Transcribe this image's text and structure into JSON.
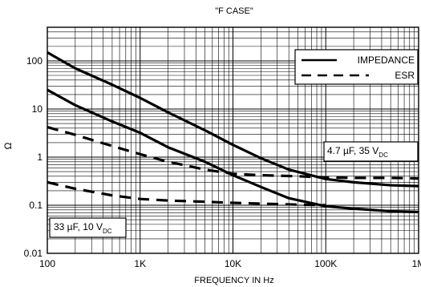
{
  "chart_data": {
    "type": "line",
    "title": "\"F CASE\"",
    "xlabel": "FREQUENCY IN Hz",
    "ylabel": "Ω",
    "x_scale": "log",
    "y_scale": "log",
    "xlim": [
      100,
      1000000
    ],
    "ylim": [
      0.01,
      500
    ],
    "x_ticks": [
      {
        "value": 100,
        "label": "100"
      },
      {
        "value": 1000,
        "label": "1K"
      },
      {
        "value": 10000,
        "label": "10K"
      },
      {
        "value": 100000,
        "label": "100K"
      },
      {
        "value": 1000000,
        "label": "1M"
      }
    ],
    "y_ticks": [
      {
        "value": 100,
        "label": "100"
      },
      {
        "value": 10,
        "label": "10"
      },
      {
        "value": 1,
        "label": "1"
      },
      {
        "value": 0.1,
        "label": "0.1"
      },
      {
        "value": 0.01,
        "label": "0.01"
      }
    ],
    "grid": true,
    "legend": {
      "position": "top-right",
      "entries": [
        {
          "name": "IMPEDANCE",
          "style": "solid"
        },
        {
          "name": "ESR",
          "style": "dashed"
        }
      ]
    },
    "annotations": [
      {
        "id": "cap-4-7",
        "main": "4.7 µF, 35 V",
        "sub": "DC"
      },
      {
        "id": "cap-33",
        "main": "33 µF, 10 V",
        "sub": "DC"
      }
    ],
    "series": [
      {
        "style": "solid",
        "group": "cap-33",
        "x": [
          100,
          200,
          500,
          1000,
          2000,
          5000,
          10000,
          20000,
          40000,
          100000,
          200000,
          500000,
          1000000
        ],
        "y": [
          150,
          70,
          32,
          17,
          8.5,
          3.6,
          1.8,
          0.95,
          0.55,
          0.35,
          0.3,
          0.26,
          0.25
        ]
      },
      {
        "style": "solid",
        "group": "cap-4-7",
        "x": [
          100,
          200,
          500,
          1000,
          2000,
          5000,
          10000,
          20000,
          40000,
          100000,
          200000,
          500000,
          1000000
        ],
        "y": [
          25,
          12,
          5.5,
          3.2,
          1.6,
          0.8,
          0.42,
          0.24,
          0.14,
          0.095,
          0.085,
          0.075,
          0.072
        ]
      },
      {
        "style": "dashed",
        "group": "cap-4-7",
        "x": [
          100,
          200,
          500,
          1000,
          2000,
          5000,
          10000,
          20000,
          50000,
          100000,
          200000,
          500000,
          1000000
        ],
        "y": [
          4.2,
          2.9,
          1.7,
          1.15,
          0.8,
          0.55,
          0.45,
          0.42,
          0.4,
          0.38,
          0.37,
          0.37,
          0.36
        ]
      },
      {
        "style": "dashed",
        "group": "cap-33",
        "x": [
          100,
          200,
          500,
          1000,
          2000,
          5000,
          10000,
          20000,
          50000,
          100000
        ],
        "y": [
          0.3,
          0.22,
          0.16,
          0.135,
          0.125,
          0.118,
          0.112,
          0.108,
          0.103,
          0.1
        ]
      }
    ]
  }
}
